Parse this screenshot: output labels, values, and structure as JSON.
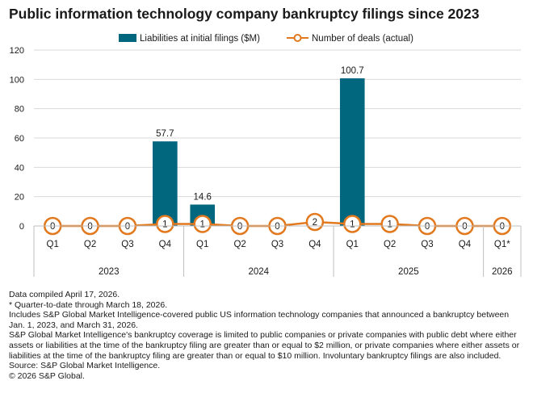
{
  "title": "Public information technology company bankruptcy filings since 2023",
  "chart_data": {
    "type": "bar",
    "title": "Public information technology company bankruptcy filings since 2023",
    "xlabel": "",
    "ylabel": "",
    "ylim": [
      0,
      120
    ],
    "yticks": [
      0,
      20,
      40,
      60,
      80,
      100,
      120
    ],
    "categories": [
      "Q1",
      "Q2",
      "Q3",
      "Q4",
      "Q1",
      "Q2",
      "Q3",
      "Q4",
      "Q1",
      "Q2",
      "Q3",
      "Q4",
      "Q1*"
    ],
    "groups": [
      {
        "label": "2023",
        "span": 4
      },
      {
        "label": "2024",
        "span": 4
      },
      {
        "label": "2025",
        "span": 4
      },
      {
        "label": "2026",
        "span": 1
      }
    ],
    "series": [
      {
        "name": "Liabilities at initial filings ($M)",
        "type": "bar",
        "color": "#00677F",
        "values": [
          0,
          0,
          0,
          57.7,
          14.6,
          0,
          0,
          0,
          100.7,
          0,
          0,
          0,
          0
        ],
        "labels": [
          "",
          "",
          "",
          "57.7",
          "14.6",
          "",
          "",
          "",
          "100.7",
          "",
          "",
          "",
          ""
        ]
      },
      {
        "name": "Number of deals (actual)",
        "type": "line",
        "color": "#E2791E",
        "values": [
          0,
          0,
          0,
          1,
          1,
          0,
          0,
          2,
          1,
          1,
          0,
          0,
          0
        ]
      }
    ],
    "legend_position": "top-center"
  },
  "notes": [
    "Data compiled April 17, 2026.",
    "* Quarter-to-date through March 18, 2026.",
    "Includes S&P Global Market Intelligence-covered public US information technology companies that announced a bankruptcy between Jan. 1, 2023, and March 31, 2026.",
    "S&P Global Market Intelligence's bankruptcy coverage is limited to public companies or private companies with public debt where either assets or liabilities at the time of the bankruptcy filing are greater than or equal to $2 million, or private companies where either assets or liabilities at the time of the bankruptcy filing are greater than or equal to $10 million. Involuntary bankruptcy filings are also included.",
    "Source: S&P Global Market Intelligence.",
    "© 2026 S&P Global."
  ]
}
